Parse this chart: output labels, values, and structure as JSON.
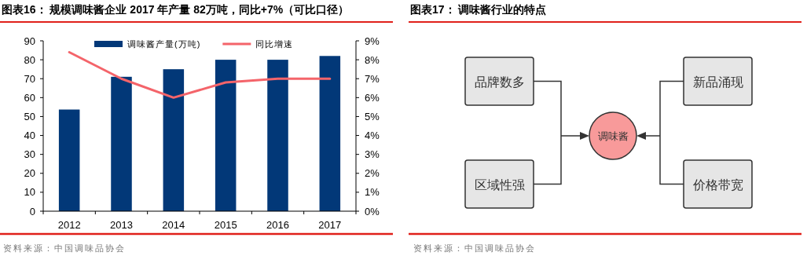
{
  "chart_data": [
    {
      "type": "bar",
      "title": "图表16：  规模调味酱企业 2017 年产量 82万吨，同比+7%（可比口径）",
      "categories": [
        "2012",
        "2013",
        "2014",
        "2015",
        "2016",
        "2017"
      ],
      "series": [
        {
          "name": "调味酱产量(万吨)",
          "type": "bar",
          "color": "#023878",
          "values": [
            53.7,
            71,
            75,
            80,
            80,
            82
          ]
        },
        {
          "name": "同比增速",
          "type": "line",
          "axis": "y2",
          "color": "#f4646a",
          "values": [
            8.4,
            7.0,
            6.0,
            6.8,
            7.0,
            7.0
          ]
        }
      ],
      "ylim": [
        0,
        90
      ],
      "yticks": [
        0,
        10,
        20,
        30,
        40,
        50,
        60,
        70,
        80,
        90
      ],
      "y2lim": [
        0,
        9
      ],
      "y2ticks": [
        {
          "value": 0,
          "label": "0%"
        },
        {
          "value": 1,
          "label": "1%"
        },
        {
          "value": 2,
          "label": "2%"
        },
        {
          "value": 3,
          "label": "3%"
        },
        {
          "value": 4,
          "label": "4%"
        },
        {
          "value": 5,
          "label": "5%"
        },
        {
          "value": 6,
          "label": "6%"
        },
        {
          "value": 7,
          "label": "7%"
        },
        {
          "value": 8,
          "label": "8%"
        },
        {
          "value": 9,
          "label": "9%"
        }
      ],
      "legend": "top",
      "grid": false,
      "annotations": [
        "资料来源：中国调味品协会"
      ]
    },
    {
      "type": "other",
      "title": "图表17：  调味酱行业的特点",
      "annotations": [
        "品牌数多",
        "区域性强",
        "新品涌现",
        "价格带宽",
        "调味酱",
        "资料来源：中国调味品协会"
      ]
    }
  ]
}
